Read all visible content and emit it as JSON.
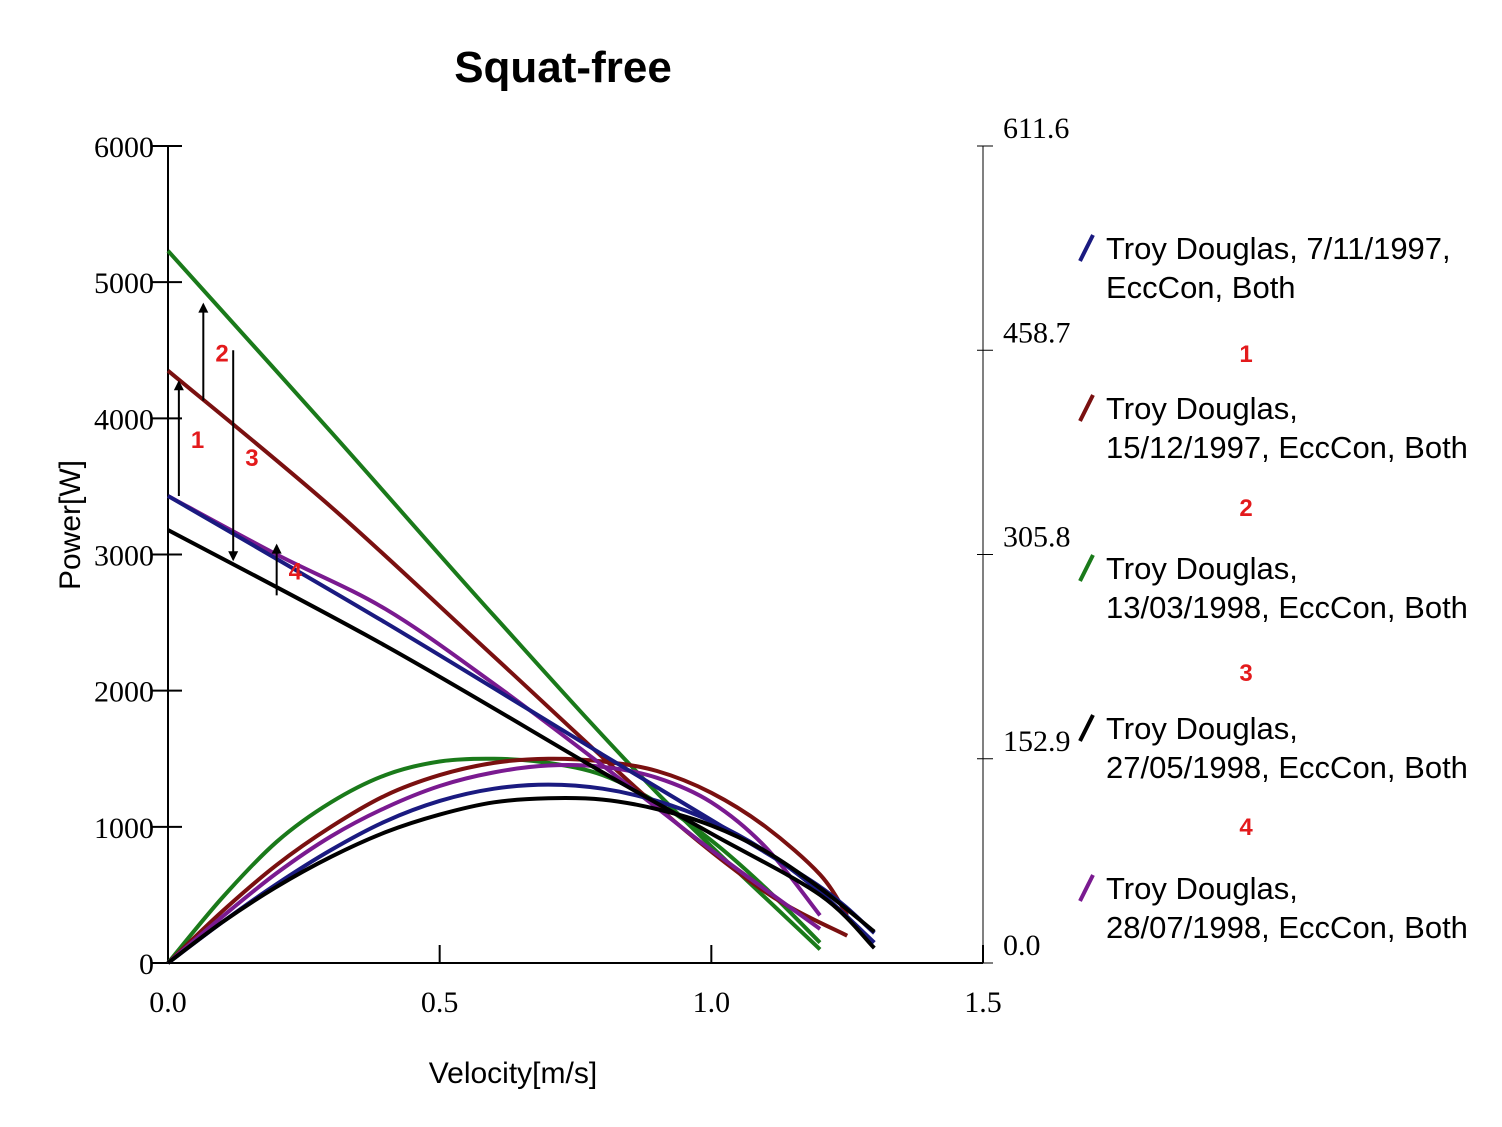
{
  "chart_data": {
    "type": "line",
    "title": "Squat-free",
    "xlabel": "Velocity[m/s]",
    "ylabel": "Power[W]",
    "xlim": [
      0,
      1.5
    ],
    "ylim": [
      0,
      6000
    ],
    "y2lim": [
      0,
      611.6
    ],
    "x_ticks": [
      "0.0",
      "0.5",
      "1.0",
      "1.5"
    ],
    "y_ticks": [
      "0",
      "1000",
      "2000",
      "3000",
      "4000",
      "5000",
      "6000"
    ],
    "y2_ticks": [
      "0.0",
      "152.9",
      "305.8",
      "458.7",
      "611.6"
    ],
    "grid": false,
    "legend_position": "right",
    "series": [
      {
        "name": "Troy Douglas,  7/11/1997, EccCon, Both",
        "legend_lines": [
          "Troy Douglas,  7/11/1997,",
          "EccCon, Both"
        ],
        "color": "#1a1a80",
        "force": {
          "x": [
            0.0,
            0.4,
            0.8,
            1.0,
            1.2,
            1.3
          ],
          "y": [
            3430,
            2500,
            1530,
            1050,
            560,
            220
          ]
        },
        "power": {
          "x": [
            0.0,
            0.1,
            0.2,
            0.3,
            0.4,
            0.5,
            0.6,
            0.7,
            0.8,
            0.9,
            1.0,
            1.1,
            1.2,
            1.3
          ],
          "y": [
            0,
            300,
            580,
            830,
            1040,
            1190,
            1280,
            1310,
            1280,
            1190,
            1040,
            820,
            520,
            150
          ]
        }
      },
      {
        "name": "Troy Douglas, 15/12/1997, EccCon, Both",
        "legend_lines": [
          "Troy Douglas,",
          "15/12/1997, EccCon, Both"
        ],
        "color": "#7a1010",
        "force": {
          "x": [
            0.0,
            0.3,
            0.6,
            0.9,
            1.1,
            1.25
          ],
          "y": [
            4350,
            3350,
            2250,
            1150,
            520,
            200
          ]
        },
        "power": {
          "x": [
            0.0,
            0.1,
            0.2,
            0.3,
            0.4,
            0.5,
            0.6,
            0.7,
            0.8,
            0.9,
            1.0,
            1.1,
            1.2,
            1.25
          ],
          "y": [
            0,
            380,
            720,
            1000,
            1230,
            1380,
            1470,
            1500,
            1480,
            1410,
            1250,
            1000,
            650,
            350
          ]
        }
      },
      {
        "name": "Troy Douglas, 13/03/1998, EccCon, Both",
        "legend_lines": [
          "Troy Douglas,",
          "13/03/1998, EccCon, Both"
        ],
        "color": "#1a7a1a",
        "force": {
          "x": [
            0.0,
            0.3,
            0.6,
            0.9,
            1.2
          ],
          "y": [
            5230,
            3900,
            2550,
            1250,
            100
          ]
        },
        "power": {
          "x": [
            0.0,
            0.1,
            0.2,
            0.3,
            0.4,
            0.5,
            0.6,
            0.7,
            0.8,
            0.9,
            1.0,
            1.1,
            1.2
          ],
          "y": [
            0,
            480,
            890,
            1180,
            1380,
            1480,
            1500,
            1470,
            1380,
            1180,
            900,
            550,
            150
          ]
        }
      },
      {
        "name": "Troy Douglas, 27/05/1998, EccCon, Both",
        "legend_lines": [
          "Troy Douglas,",
          "27/05/1998, EccCon, Both"
        ],
        "color": "#000000",
        "force": {
          "x": [
            0.0,
            0.4,
            0.8,
            1.0,
            1.2,
            1.3
          ],
          "y": [
            3180,
            2330,
            1400,
            950,
            500,
            110
          ]
        },
        "power": {
          "x": [
            0.0,
            0.1,
            0.2,
            0.3,
            0.4,
            0.5,
            0.6,
            0.7,
            0.8,
            0.9,
            1.0,
            1.1,
            1.2,
            1.3
          ],
          "y": [
            0,
            300,
            560,
            780,
            960,
            1090,
            1180,
            1210,
            1200,
            1130,
            1010,
            820,
            550,
            230
          ]
        }
      },
      {
        "name": "Troy Douglas, 28/07/1998, EccCon, Both",
        "legend_lines": [
          "Troy Douglas,",
          "28/07/1998, EccCon, Both"
        ],
        "color": "#7a1a90",
        "force": {
          "x": [
            0.0,
            0.2,
            0.4,
            0.6,
            0.8,
            1.0,
            1.2
          ],
          "y": [
            3430,
            3000,
            2600,
            2050,
            1450,
            830,
            250
          ]
        },
        "power": {
          "x": [
            0.0,
            0.1,
            0.2,
            0.3,
            0.4,
            0.5,
            0.6,
            0.7,
            0.8,
            0.9,
            1.0,
            1.1,
            1.2
          ],
          "y": [
            0,
            340,
            660,
            930,
            1140,
            1300,
            1400,
            1450,
            1440,
            1360,
            1180,
            850,
            350
          ]
        }
      }
    ],
    "annotations": [
      {
        "label": "1",
        "x": 0.02,
        "from": 3430,
        "to": 4280
      },
      {
        "label": "2",
        "x": 0.065,
        "from": 4130,
        "to": 4850
      },
      {
        "label": "3",
        "x": 0.12,
        "from": 4500,
        "to": 2950
      },
      {
        "label": "4",
        "x": 0.2,
        "from": 2700,
        "to": 3080
      }
    ],
    "legend_separators": [
      "1",
      "2",
      "3",
      "4"
    ]
  }
}
